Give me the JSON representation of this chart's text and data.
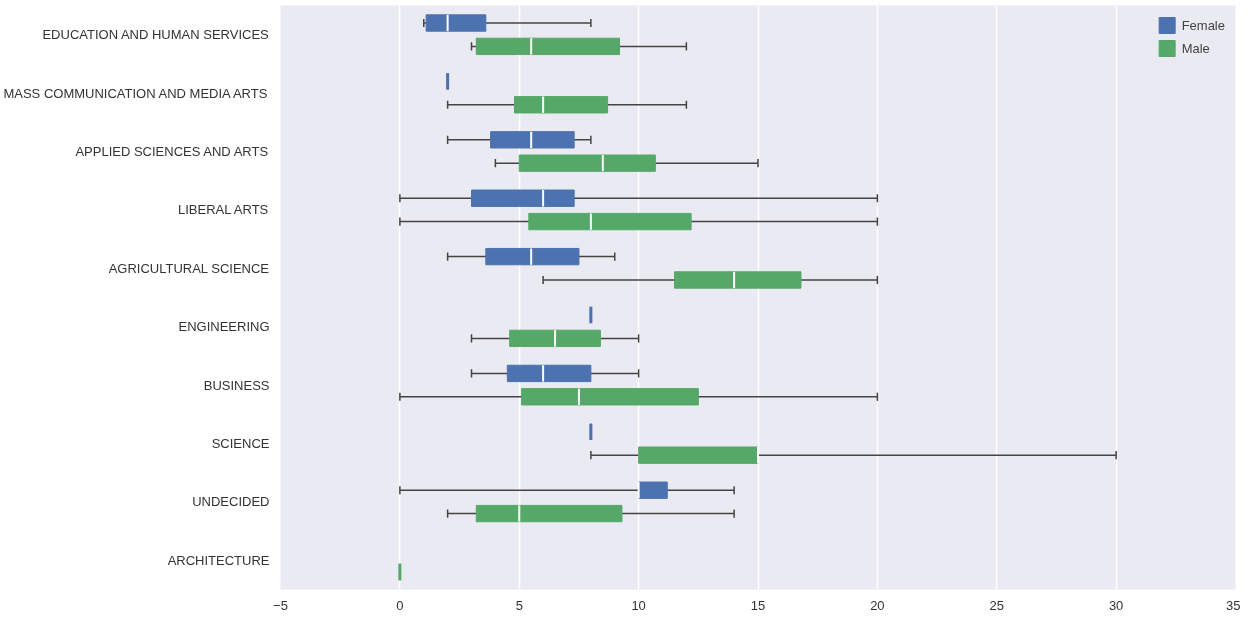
{
  "chart_data": {
    "type": "box",
    "orientation": "horizontal",
    "categories": [
      "EDUCATION AND HUMAN SERVICES",
      "MASS COMMUNICATION AND MEDIA ARTS",
      "APPLIED SCIENCES AND ARTS",
      "LIBERAL ARTS",
      "AGRICULTURAL SCIENCE",
      "ENGINEERING",
      "BUSINESS",
      "SCIENCE",
      "UNDECIDED",
      "ARCHITECTURE"
    ],
    "xlim": [
      -5,
      35
    ],
    "xticks": [
      -5,
      0,
      5,
      10,
      15,
      20,
      25,
      30,
      35
    ],
    "grid": "x",
    "legend": "top right",
    "series": [
      {
        "name": "Female",
        "color": "#4c72b0",
        "boxes": [
          {
            "low": 1,
            "q1": 1.1,
            "median": 2,
            "q3": 3.6,
            "high": 8
          },
          {
            "low": 2,
            "q1": 2,
            "median": 2,
            "q3": 2,
            "high": 2
          },
          {
            "low": 2,
            "q1": 3.8,
            "median": 5.5,
            "q3": 7.3,
            "high": 8
          },
          {
            "low": 0,
            "q1": 3,
            "median": 6,
            "q3": 7.3,
            "high": 20
          },
          {
            "low": 2,
            "q1": 3.6,
            "median": 5.5,
            "q3": 7.5,
            "high": 9
          },
          {
            "low": 8,
            "q1": 8,
            "median": 8,
            "q3": 8,
            "high": 8
          },
          {
            "low": 3,
            "q1": 4.5,
            "median": 6,
            "q3": 8,
            "high": 10
          },
          {
            "low": 8,
            "q1": 8,
            "median": 8,
            "q3": 8,
            "high": 8
          },
          {
            "low": 0,
            "q1": 10,
            "median": 10,
            "q3": 11.2,
            "high": 14
          },
          null
        ]
      },
      {
        "name": "Male",
        "color": "#55a868",
        "boxes": [
          {
            "low": 3,
            "q1": 3.2,
            "median": 5.5,
            "q3": 9.2,
            "high": 12
          },
          {
            "low": 2,
            "q1": 4.8,
            "median": 6,
            "q3": 8.7,
            "high": 12
          },
          {
            "low": 4,
            "q1": 5,
            "median": 8.5,
            "q3": 10.7,
            "high": 15
          },
          {
            "low": 0,
            "q1": 5.4,
            "median": 8,
            "q3": 12.2,
            "high": 20
          },
          {
            "low": 6,
            "q1": 11.5,
            "median": 14,
            "q3": 16.8,
            "high": 20
          },
          {
            "low": 3,
            "q1": 4.6,
            "median": 6.5,
            "q3": 8.4,
            "high": 10
          },
          {
            "low": 0,
            "q1": 5.1,
            "median": 7.5,
            "q3": 12.5,
            "high": 20
          },
          {
            "low": 8,
            "q1": 10,
            "median": 15,
            "q3": 15,
            "high": 30
          },
          {
            "low": 2,
            "q1": 3.2,
            "median": 5,
            "q3": 9.3,
            "high": 14
          },
          {
            "low": 0,
            "q1": 0,
            "median": 0,
            "q3": 0,
            "high": 0
          }
        ]
      }
    ]
  }
}
